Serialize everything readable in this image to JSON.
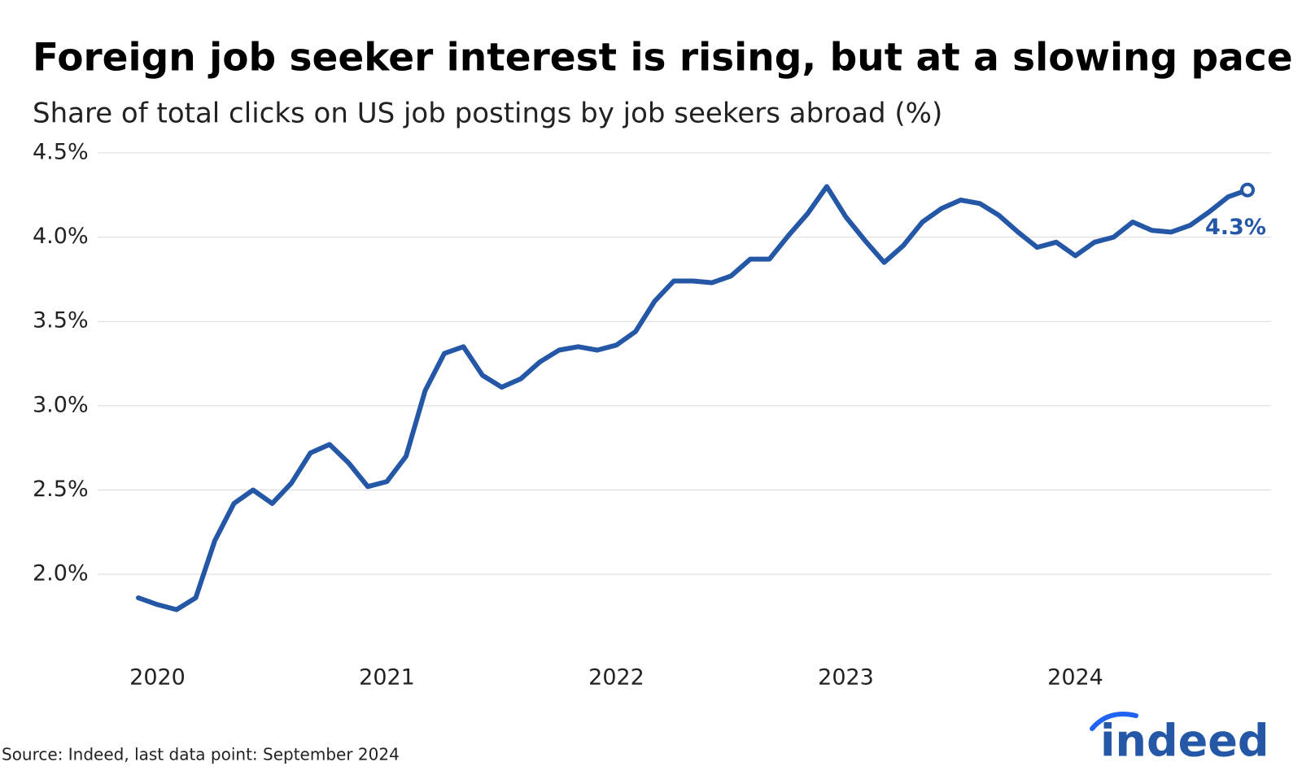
{
  "chart_data": {
    "type": "line",
    "title": "Foreign job seeker interest is rising, but at a slowing pace",
    "subtitle": "Share of total clicks on US job postings by job seekers abroad (%)",
    "source": "Source: Indeed, last data point: September 2024",
    "logo": "indeed",
    "categories": [
      null,
      "2020",
      null,
      null,
      null,
      null,
      null,
      null,
      null,
      null,
      null,
      null,
      null,
      "2021",
      null,
      null,
      null,
      null,
      null,
      null,
      null,
      null,
      null,
      null,
      null,
      "2022",
      null,
      null,
      null,
      null,
      null,
      null,
      null,
      null,
      null,
      null,
      null,
      "2023",
      null,
      null,
      null,
      null,
      null,
      null,
      null,
      null,
      null,
      null,
      null,
      "2024",
      null,
      null,
      null,
      null,
      null,
      null,
      null,
      null,
      null
    ],
    "series": [
      {
        "name": "Share of clicks",
        "color": "#2557a7",
        "values": [
          1.86,
          1.82,
          1.79,
          1.86,
          2.2,
          2.42,
          2.5,
          2.42,
          2.54,
          2.72,
          2.77,
          2.66,
          2.52,
          2.55,
          2.7,
          3.09,
          3.31,
          3.35,
          3.18,
          3.11,
          3.16,
          3.26,
          3.33,
          3.35,
          3.33,
          3.36,
          3.44,
          3.62,
          3.74,
          3.74,
          3.73,
          3.77,
          3.87,
          3.87,
          4.01,
          4.14,
          4.3,
          4.12,
          3.98,
          3.85,
          3.95,
          4.09,
          4.17,
          4.22,
          4.2,
          4.13,
          4.03,
          3.94,
          3.97,
          3.89,
          3.97,
          4.0,
          4.09,
          4.04,
          4.03,
          4.07,
          4.15,
          4.24,
          4.28
        ],
        "value_labels": [
          null,
          null,
          null,
          null,
          null,
          null,
          null,
          null,
          null,
          null,
          null,
          null,
          null,
          null,
          null,
          null,
          null,
          null,
          null,
          null,
          null,
          null,
          null,
          null,
          null,
          null,
          null,
          null,
          null,
          null,
          null,
          null,
          null,
          null,
          null,
          null,
          null,
          null,
          null,
          null,
          null,
          null,
          null,
          null,
          null,
          null,
          null,
          null,
          null,
          null,
          null,
          null,
          null,
          null,
          null,
          null,
          null,
          null,
          "4.3%"
        ]
      }
    ],
    "ylim": [
      1.6,
      4.5
    ],
    "yticks": [
      {
        "value": 2.0,
        "label": "2.0%"
      },
      {
        "value": 2.5,
        "label": "2.5%"
      },
      {
        "value": 3.0,
        "label": "3.0%"
      },
      {
        "value": 3.5,
        "label": "3.5%"
      },
      {
        "value": 4.0,
        "label": "4.0%"
      },
      {
        "value": 4.5,
        "label": "4.5%"
      }
    ],
    "grid": true
  }
}
